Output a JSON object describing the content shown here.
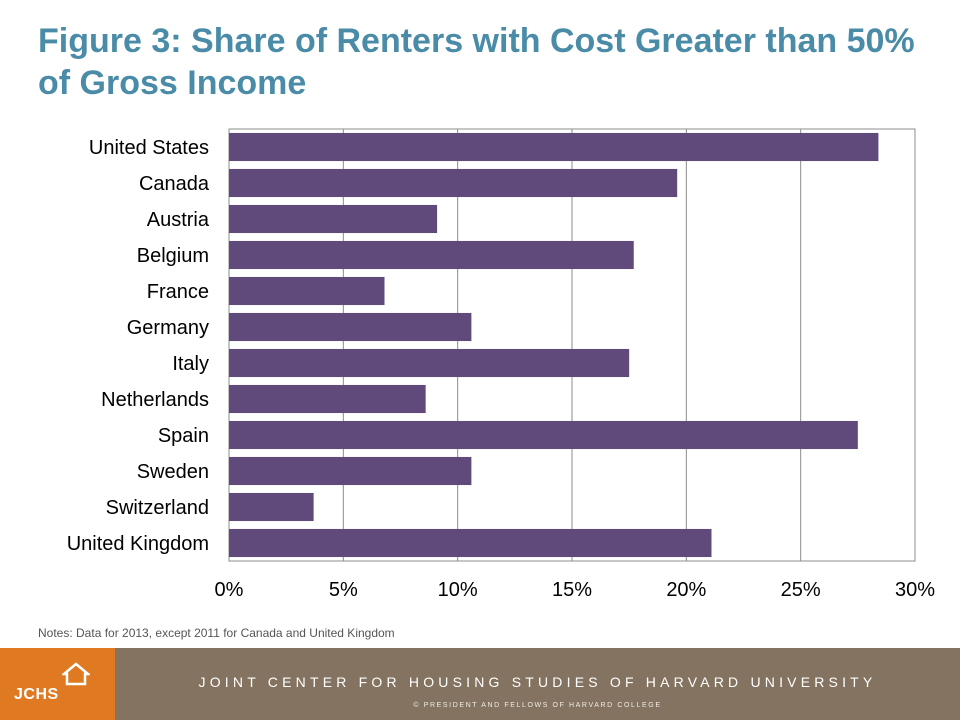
{
  "header": {
    "title": "Figure 3: Share of Renters with Cost Greater than 50% of Gross Income"
  },
  "chart_data": {
    "type": "bar",
    "orientation": "horizontal",
    "title": "Figure 3: Share of Renters with Cost Greater than 50% of Gross Income",
    "xlabel": "",
    "ylabel": "",
    "categories": [
      "United States",
      "Canada",
      "Austria",
      "Belgium",
      "France",
      "Germany",
      "Italy",
      "Netherlands",
      "Spain",
      "Sweden",
      "Switzerland",
      "United Kingdom"
    ],
    "values": [
      28.4,
      19.6,
      9.1,
      17.7,
      6.8,
      10.6,
      17.5,
      8.6,
      27.5,
      10.6,
      3.7,
      21.1
    ],
    "xlim": [
      0,
      30
    ],
    "xticks": [
      0,
      5,
      10,
      15,
      20,
      25,
      30
    ],
    "xtick_labels": [
      "0%",
      "5%",
      "10%",
      "15%",
      "20%",
      "25%",
      "30%"
    ],
    "grid": "vertical",
    "bar_color": "#604a7b"
  },
  "notes": "Notes: Data for 2013, except 2011 for Canada and United Kingdom",
  "footer": {
    "logo_text": "JCHS",
    "organization": "JOINT CENTER FOR HOUSING STUDIES OF HARVARD UNIVERSITY",
    "copyright": "© PRESIDENT AND FELLOWS OF HARVARD COLLEGE"
  },
  "colors": {
    "title": "#4a8ca8",
    "bar": "#604a7b",
    "footer_logo": "#e07a22",
    "footer_band": "#837360"
  }
}
